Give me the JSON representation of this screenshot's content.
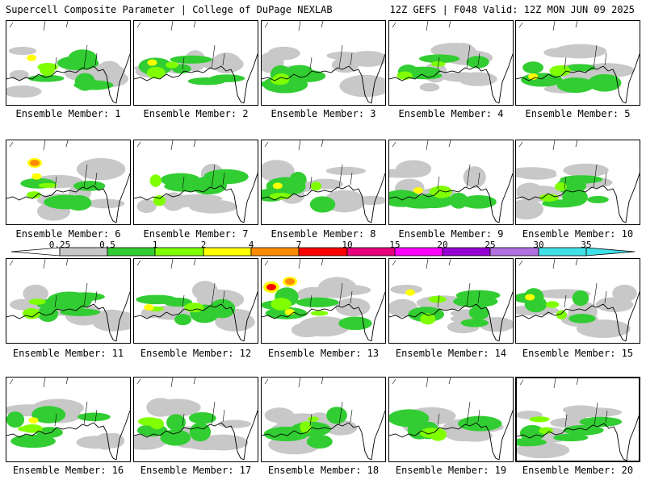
{
  "header": {
    "left": "Supercell Composite Parameter | College of DuPage NEXLAB",
    "right": "12Z GEFS | F048 Valid: 12Z MON JUN 09 2025"
  },
  "members": [
    {
      "label": "Ensemble Member: 1",
      "peak": "2-4",
      "highlighted": false
    },
    {
      "label": "Ensemble Member: 2",
      "peak": "2-4",
      "highlighted": false
    },
    {
      "label": "Ensemble Member: 3",
      "peak": "1-2",
      "highlighted": false
    },
    {
      "label": "Ensemble Member: 4",
      "peak": "1-2",
      "highlighted": false
    },
    {
      "label": "Ensemble Member: 5",
      "peak": "2-4",
      "highlighted": false
    },
    {
      "label": "Ensemble Member: 6",
      "peak": "4-7",
      "highlighted": false
    },
    {
      "label": "Ensemble Member: 7",
      "peak": "1-2",
      "highlighted": false
    },
    {
      "label": "Ensemble Member: 8",
      "peak": "2-4",
      "highlighted": false
    },
    {
      "label": "Ensemble Member: 9",
      "peak": "2-4",
      "highlighted": false
    },
    {
      "label": "Ensemble Member: 10",
      "peak": "1-2",
      "highlighted": false
    },
    {
      "label": "Ensemble Member: 11",
      "peak": "1-2",
      "highlighted": false
    },
    {
      "label": "Ensemble Member: 12",
      "peak": "2-4",
      "highlighted": false
    },
    {
      "label": "Ensemble Member: 13",
      "peak": "10-15",
      "highlighted": false
    },
    {
      "label": "Ensemble Member: 14",
      "peak": "2-4",
      "highlighted": false
    },
    {
      "label": "Ensemble Member: 15",
      "peak": "2-4",
      "highlighted": false
    },
    {
      "label": "Ensemble Member: 16",
      "peak": "2-4",
      "highlighted": false
    },
    {
      "label": "Ensemble Member: 17",
      "peak": "1-2",
      "highlighted": false
    },
    {
      "label": "Ensemble Member: 18",
      "peak": "1-2",
      "highlighted": false
    },
    {
      "label": "Ensemble Member: 19",
      "peak": "1-2",
      "highlighted": false
    },
    {
      "label": "Ensemble Member: 20",
      "peak": "0.5-1",
      "highlighted": true
    }
  ],
  "colorbar": {
    "ticks": [
      "0.25",
      "0.5",
      "1",
      "2",
      "4",
      "7",
      "10",
      "15",
      "20",
      "25",
      "30",
      "35"
    ],
    "colors": [
      "#ffffff",
      "#c8c8c8",
      "#32cd32",
      "#7fff00",
      "#ffff00",
      "#ff8c00",
      "#ff0000",
      "#e8007c",
      "#ff00ff",
      "#9400d3",
      "#b070e0",
      "#40e0e8"
    ]
  }
}
